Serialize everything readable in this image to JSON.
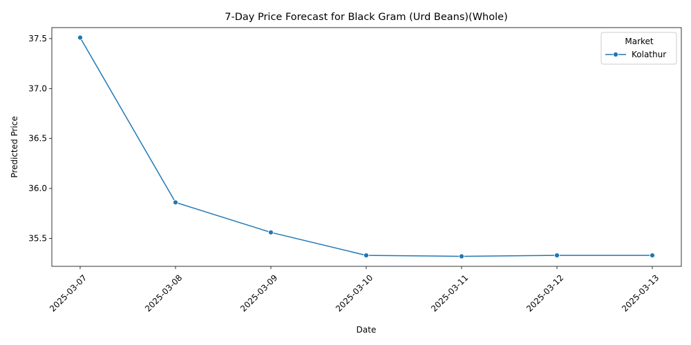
{
  "chart_data": {
    "type": "line",
    "title": "7-Day Price Forecast for Black Gram (Urd Beans)(Whole)",
    "xlabel": "Date",
    "ylabel": "Predicted Price",
    "x": [
      "2025-03-07",
      "2025-03-08",
      "2025-03-09",
      "2025-03-10",
      "2025-03-11",
      "2025-03-12",
      "2025-03-13"
    ],
    "series": [
      {
        "name": "Kolathur",
        "values": [
          37.51,
          35.86,
          35.56,
          35.33,
          35.32,
          35.33,
          35.33
        ],
        "color": "#1f77b4"
      }
    ],
    "ylim": [
      35.22,
      37.61
    ],
    "yticks": [
      "35.5",
      "36.0",
      "36.5",
      "37.0",
      "37.5"
    ],
    "legend": {
      "title": "Market",
      "position": "top-right"
    },
    "grid": false
  }
}
